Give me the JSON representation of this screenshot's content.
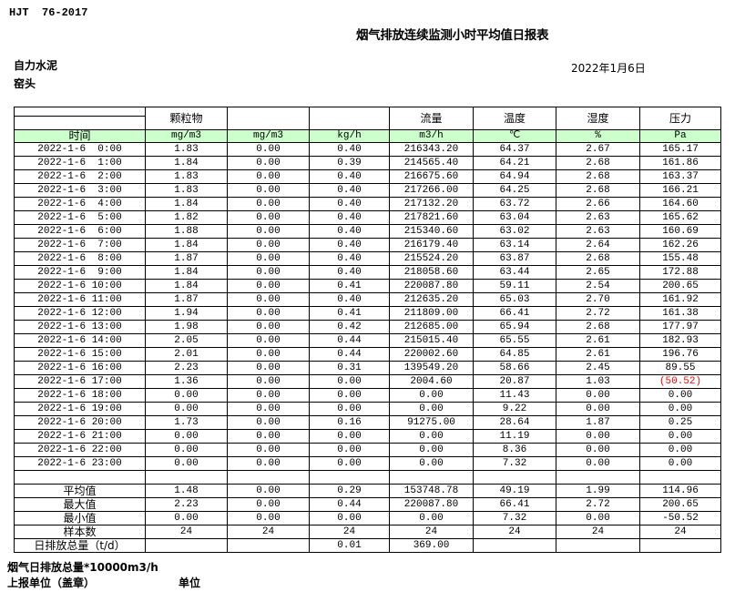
{
  "page": {
    "doc_code": "HJT  76-2017",
    "title": "烟气排放连续监测小时平均值日报表",
    "company": "自力水泥",
    "station": "窑头",
    "date": "2022年1月6日"
  },
  "table": {
    "group_header": {
      "particulate": "颗粒物",
      "flow": "流量",
      "temperature": "温度",
      "humidity": "湿度",
      "pressure": "压力"
    },
    "unit_row": [
      "时间",
      "mg/m3",
      "mg/m3",
      "kg/h",
      "m3/h",
      "℃",
      "%",
      "Pa"
    ],
    "rows": [
      {
        "time": "2022-1-6  0:00",
        "values": [
          "1.83",
          "0.00",
          "0.40",
          "216343.20",
          "64.37",
          "2.67",
          "165.17"
        ]
      },
      {
        "time": "2022-1-6  1:00",
        "values": [
          "1.84",
          "0.00",
          "0.39",
          "214565.40",
          "64.21",
          "2.68",
          "161.86"
        ]
      },
      {
        "time": "2022-1-6  2:00",
        "values": [
          "1.83",
          "0.00",
          "0.40",
          "216675.60",
          "64.94",
          "2.68",
          "163.37"
        ]
      },
      {
        "time": "2022-1-6  3:00",
        "values": [
          "1.83",
          "0.00",
          "0.40",
          "217266.00",
          "64.25",
          "2.68",
          "166.21"
        ]
      },
      {
        "time": "2022-1-6  4:00",
        "values": [
          "1.84",
          "0.00",
          "0.40",
          "217132.20",
          "63.72",
          "2.66",
          "164.60"
        ]
      },
      {
        "time": "2022-1-6  5:00",
        "values": [
          "1.82",
          "0.00",
          "0.40",
          "217821.60",
          "63.04",
          "2.63",
          "165.62"
        ]
      },
      {
        "time": "2022-1-6  6:00",
        "values": [
          "1.88",
          "0.00",
          "0.40",
          "215340.60",
          "63.02",
          "2.63",
          "160.69"
        ]
      },
      {
        "time": "2022-1-6  7:00",
        "values": [
          "1.84",
          "0.00",
          "0.40",
          "216179.40",
          "63.14",
          "2.64",
          "162.26"
        ]
      },
      {
        "time": "2022-1-6  8:00",
        "values": [
          "1.87",
          "0.00",
          "0.40",
          "215524.20",
          "63.87",
          "2.68",
          "155.48"
        ]
      },
      {
        "time": "2022-1-6  9:00",
        "values": [
          "1.84",
          "0.00",
          "0.40",
          "218058.60",
          "63.44",
          "2.65",
          "172.88"
        ]
      },
      {
        "time": "2022-1-6 10:00",
        "values": [
          "1.84",
          "0.00",
          "0.41",
          "220087.80",
          "59.11",
          "2.54",
          "200.65"
        ]
      },
      {
        "time": "2022-1-6 11:00",
        "values": [
          "1.87",
          "0.00",
          "0.40",
          "212635.20",
          "65.03",
          "2.70",
          "161.92"
        ]
      },
      {
        "time": "2022-1-6 12:00",
        "values": [
          "1.94",
          "0.00",
          "0.41",
          "211809.00",
          "66.41",
          "2.72",
          "161.38"
        ]
      },
      {
        "time": "2022-1-6 13:00",
        "values": [
          "1.98",
          "0.00",
          "0.42",
          "212685.00",
          "65.94",
          "2.68",
          "177.97"
        ]
      },
      {
        "time": "2022-1-6 14:00",
        "values": [
          "2.05",
          "0.00",
          "0.44",
          "215015.40",
          "65.55",
          "2.61",
          "182.93"
        ]
      },
      {
        "time": "2022-1-6 15:00",
        "values": [
          "2.01",
          "0.00",
          "0.44",
          "220002.60",
          "64.85",
          "2.61",
          "196.76"
        ]
      },
      {
        "time": "2022-1-6 16:00",
        "values": [
          "2.23",
          "0.00",
          "0.31",
          "139549.20",
          "58.66",
          "2.45",
          "89.55"
        ]
      },
      {
        "time": "2022-1-6 17:00",
        "values": [
          "1.36",
          "0.00",
          "0.00",
          "2004.60",
          "20.87",
          "1.03",
          {
            "text": "(50.52)",
            "red": true
          }
        ]
      },
      {
        "time": "2022-1-6 18:00",
        "values": [
          "0.00",
          "0.00",
          "0.00",
          "0.00",
          "11.43",
          "0.00",
          "0.00"
        ]
      },
      {
        "time": "2022-1-6 19:00",
        "values": [
          "0.00",
          "0.00",
          "0.00",
          "0.00",
          "9.22",
          "0.00",
          "0.00"
        ]
      },
      {
        "time": "2022-1-6 20:00",
        "values": [
          "1.73",
          "0.00",
          "0.16",
          "91275.00",
          "28.64",
          "1.87",
          "0.25"
        ]
      },
      {
        "time": "2022-1-6 21:00",
        "values": [
          "0.00",
          "0.00",
          "0.00",
          "0.00",
          "11.19",
          "0.00",
          "0.00"
        ]
      },
      {
        "time": "2022-1-6 22:00",
        "values": [
          "0.00",
          "0.00",
          "0.00",
          "0.00",
          "8.36",
          "0.00",
          "0.00"
        ]
      },
      {
        "time": "2022-1-6 23:00",
        "values": [
          "0.00",
          "0.00",
          "0.00",
          "0.00",
          "7.32",
          "0.00",
          "0.00"
        ]
      }
    ],
    "summary_rows": [
      {
        "label": "平均值",
        "values": [
          "1.48",
          "0.00",
          "0.29",
          "153748.78",
          "49.19",
          "1.99",
          "114.96"
        ]
      },
      {
        "label": "最大值",
        "values": [
          "2.23",
          "0.00",
          "0.44",
          "220087.80",
          "66.41",
          "2.72",
          "200.65"
        ]
      },
      {
        "label": "最小值",
        "values": [
          "0.00",
          "0.00",
          "0.00",
          "0.00",
          "7.32",
          "0.00",
          "-50.52"
        ]
      },
      {
        "label": "样本数",
        "values": [
          "24",
          "24",
          "24",
          "24",
          "24",
          "24",
          "24"
        ]
      },
      {
        "label": "日排放总量（t/d）",
        "values": [
          "",
          "",
          "0.01",
          "369.00",
          "",
          "",
          ""
        ]
      }
    ]
  },
  "footer": {
    "note": "烟气日排放总量*10000m3/h",
    "report_unit_label": "上报单位（盖章）",
    "unit_label": "单位"
  },
  "colors": {
    "header_green": "#ccffcc",
    "alert_red": "#ff0000"
  }
}
